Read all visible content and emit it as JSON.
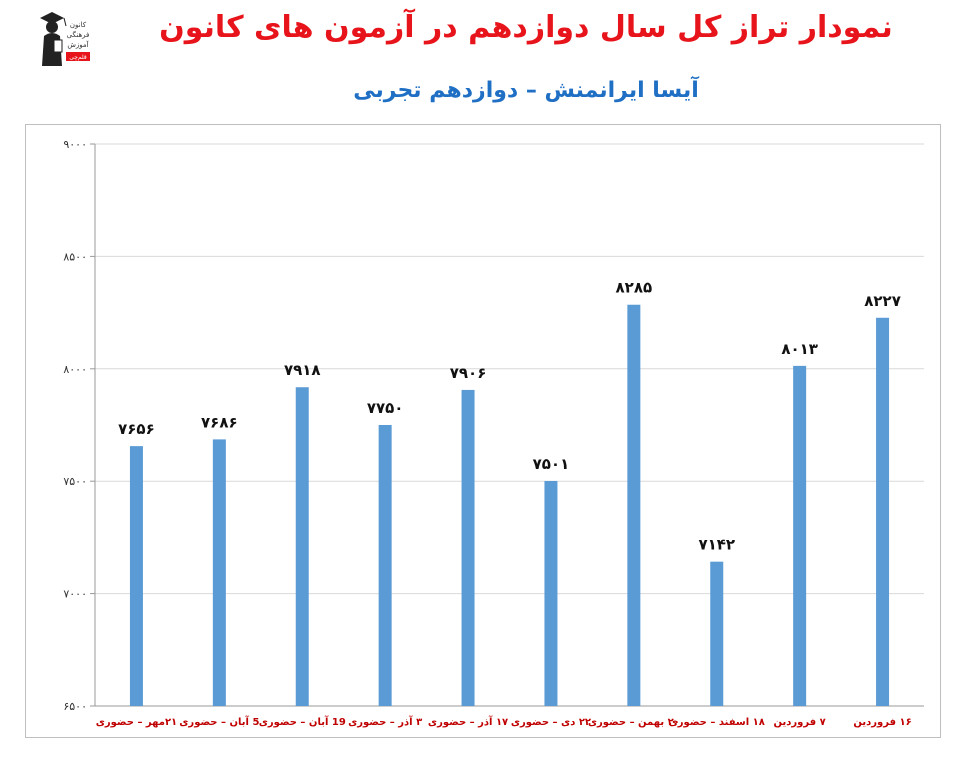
{
  "header": {
    "title": "نمودار تراز کل سال دوازدهم در آزمون های کانون",
    "subtitle": "آیسا ایرانمنش – دوازدهم تجربی"
  },
  "logo": {
    "icon": "graduate-figure-icon",
    "lines": [
      "کانون",
      "فرهنگی",
      "آموزش",
      "قلم‌چی"
    ]
  },
  "colors": {
    "title": "#e8141b",
    "subtitle": "#1f6fc4",
    "bar": "#5b9bd5",
    "tick_label": "#c00000",
    "grid": "#d9d9d9"
  },
  "chart_data": {
    "type": "bar",
    "categories": [
      "۲۱مهر – حضوری",
      "5 آبان – حضوری",
      "19 آبان – حضوری",
      "۳ آذر – حضوری",
      "۱۷ آذر – حضوری",
      "۲۲ دی – حضوری",
      "۲۰ بهمن – حضوری",
      "۱۸ اسفند – حضوری",
      "۷ فروردین",
      "۱۶ فروردین"
    ],
    "values": [
      7656,
      7686,
      7918,
      7750,
      7906,
      7501,
      8285,
      7142,
      8013,
      8227
    ],
    "value_labels": [
      "۷۶۵۶",
      "۷۶۸۶",
      "۷۹۱۸",
      "۷۷۵۰",
      "۷۹۰۶",
      "۷۵۰۱",
      "۸۲۸۵",
      "۷۱۴۲",
      "۸۰۱۳",
      "۸۲۲۷"
    ],
    "ylim": [
      6500,
      9000
    ],
    "yticks": [
      6500,
      7000,
      7500,
      8000,
      8500,
      9000
    ],
    "ytick_labels": [
      "۶۵۰۰",
      "۷۰۰۰",
      "۷۵۰۰",
      "۸۰۰۰",
      "۸۵۰۰",
      "۹۰۰۰"
    ],
    "grid": true,
    "legend": "none",
    "title": "",
    "xlabel": "",
    "ylabel": ""
  }
}
